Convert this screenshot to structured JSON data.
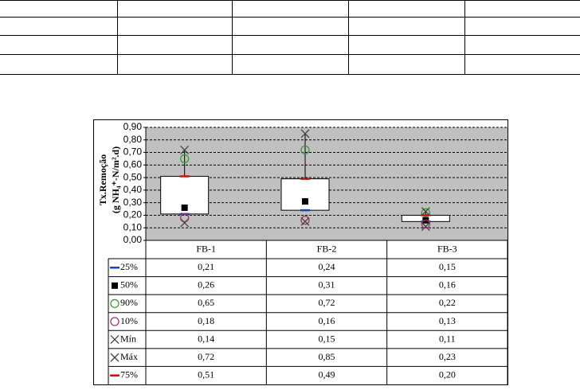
{
  "chart_data": {
    "type": "box",
    "ylabel": [
      "Tx.Remoção",
      "(g NH₄⁺-N/m².d)"
    ],
    "categories": [
      "FB-1",
      "FB-2",
      "FB-3"
    ],
    "ylim": [
      0,
      0.9
    ],
    "yticks": [
      {
        "value": 0,
        "label": "0,00"
      },
      {
        "value": 0.1,
        "label": "0,10"
      },
      {
        "value": 0.2,
        "label": "0,20"
      },
      {
        "value": 0.3,
        "label": "0,30"
      },
      {
        "value": 0.4,
        "label": "0,40"
      },
      {
        "value": 0.5,
        "label": "0,50"
      },
      {
        "value": 0.6,
        "label": "0,60"
      },
      {
        "value": 0.7,
        "label": "0,70"
      },
      {
        "value": 0.8,
        "label": "0,80"
      },
      {
        "value": 0.9,
        "label": "0,90"
      }
    ],
    "grid": true,
    "series": [
      {
        "name": "25%",
        "color": "#1f3fbf",
        "marker": "dash",
        "values": [
          0.21,
          0.24,
          0.15
        ],
        "value_labels": [
          "0,21",
          "0,24",
          "0,15"
        ]
      },
      {
        "name": "50%",
        "color": "#000000",
        "marker": "square",
        "values": [
          0.26,
          0.31,
          0.16
        ],
        "value_labels": [
          "0,26",
          "0,31",
          "0,16"
        ]
      },
      {
        "name": "90%",
        "color": "#3a9a3a",
        "marker": "circle",
        "values": [
          0.65,
          0.72,
          0.22
        ],
        "value_labels": [
          "0,65",
          "0,72",
          "0,22"
        ]
      },
      {
        "name": "10%",
        "color": "#a0306a",
        "marker": "circle",
        "values": [
          0.18,
          0.16,
          0.13
        ],
        "value_labels": [
          "0,18",
          "0,16",
          "0,13"
        ]
      },
      {
        "name": "Mín",
        "color": "#444444",
        "marker": "x",
        "values": [
          0.14,
          0.15,
          0.11
        ],
        "value_labels": [
          "0,14",
          "0,15",
          "0,11"
        ]
      },
      {
        "name": "Máx",
        "color": "#444444",
        "marker": "x",
        "values": [
          0.72,
          0.85,
          0.23
        ],
        "value_labels": [
          "0,72",
          "0,85",
          "0,23"
        ]
      },
      {
        "name": "75%",
        "color": "#cc1111",
        "marker": "dash",
        "values": [
          0.51,
          0.49,
          0.2
        ],
        "value_labels": [
          "0,51",
          "0,49",
          "0,20"
        ]
      }
    ]
  }
}
